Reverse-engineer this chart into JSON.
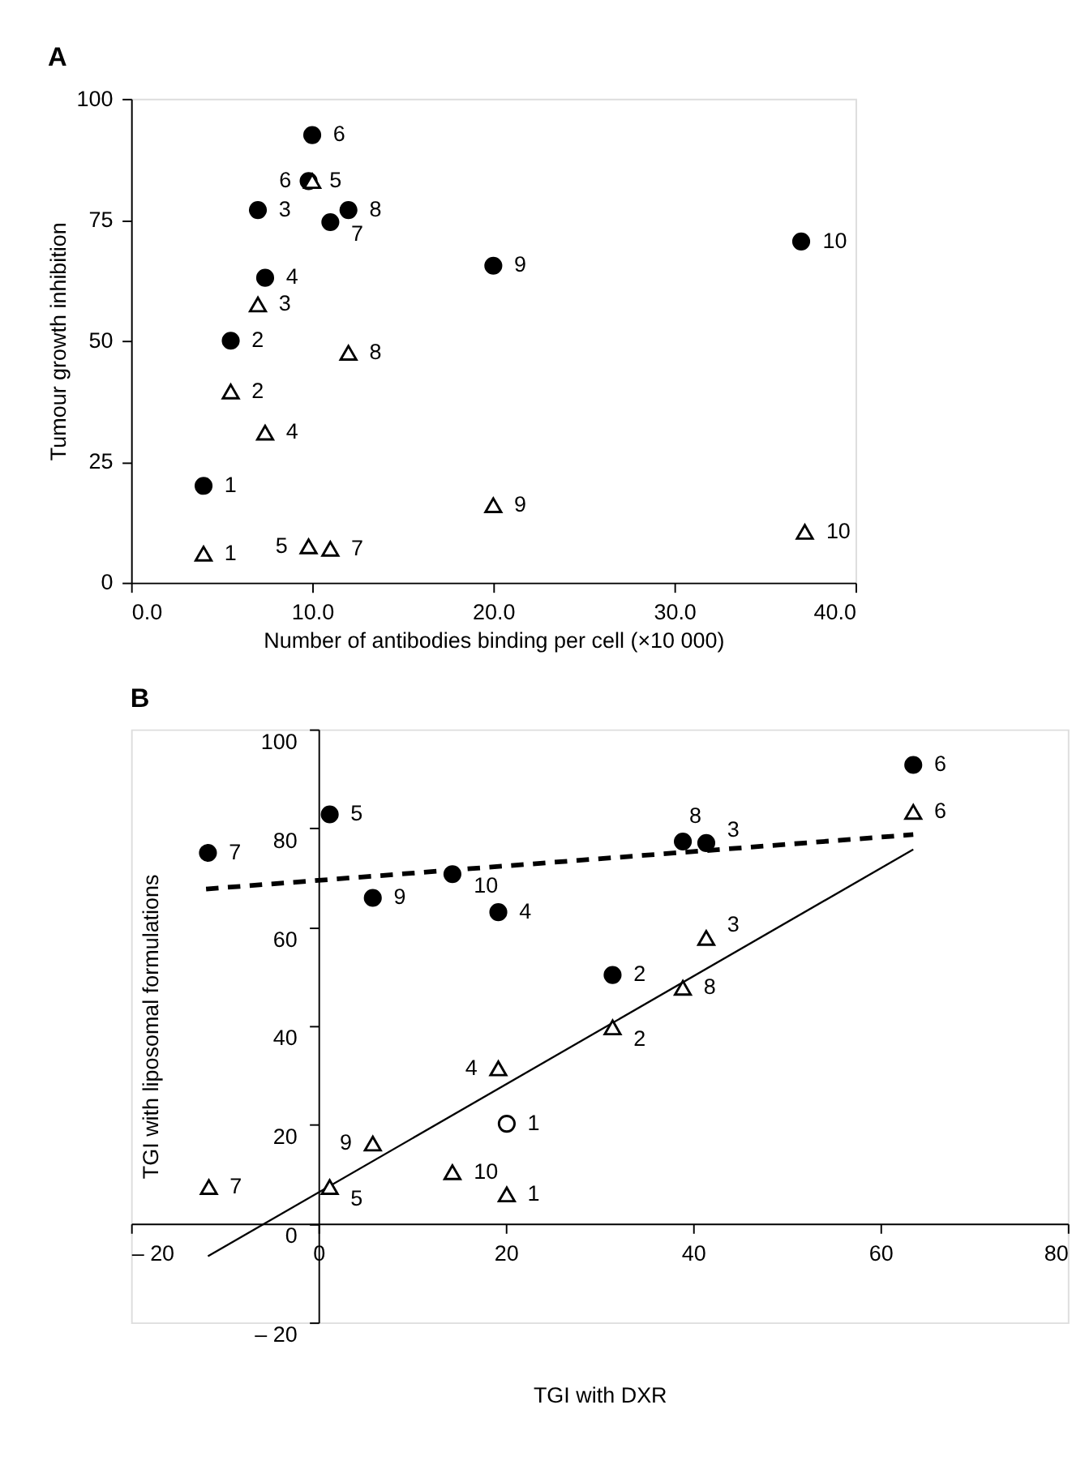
{
  "chart_data": [
    {
      "type": "scatter",
      "title": "A",
      "xlabel": "Number of antibodies binding per cell (×10 000)",
      "ylabel": "Tumour growth inhibition",
      "xlim": [
        0,
        40
      ],
      "xticks": [
        {
          "value": 0,
          "label": "0.0"
        },
        {
          "value": 10,
          "label": "10.0"
        },
        {
          "value": 20,
          "label": "20.0"
        },
        {
          "value": 30,
          "label": "30.0"
        },
        {
          "value": 40,
          "label": "40.0"
        }
      ],
      "ylim": [
        0,
        100
      ],
      "yticks": [
        0,
        25,
        50,
        75,
        100
      ],
      "grid": false,
      "series": [
        {
          "marker": "circle",
          "color": "#000000",
          "x": [
            4,
            5.5,
            7,
            7.4,
            9.8,
            10,
            11,
            12,
            20,
            37
          ],
          "values": [
            20,
            50,
            77,
            63,
            83,
            92.5,
            74.5,
            77,
            65.5,
            70.5
          ]
        },
        {
          "marker": "triangle",
          "color": "#ffffff",
          "x": [
            4,
            5.5,
            7,
            7.4,
            9.8,
            10,
            11,
            12,
            20,
            37.2
          ],
          "values": [
            6,
            39.5,
            57.5,
            31,
            7.5,
            83,
            7,
            47.5,
            16,
            10.5
          ]
        }
      ],
      "annotations": [
        {
          "text": "1",
          "x": 4,
          "y": 20
        },
        {
          "text": "2",
          "x": 5.5,
          "y": 50
        },
        {
          "text": "3",
          "x": 7,
          "y": 77
        },
        {
          "text": "4",
          "x": 7.4,
          "y": 63
        },
        {
          "text": "5",
          "x": 9.8,
          "y": 83
        },
        {
          "text": "6",
          "x": 10,
          "y": 92.5
        },
        {
          "text": "7",
          "x": 11,
          "y": 74.5
        },
        {
          "text": "8",
          "x": 12,
          "y": 77
        },
        {
          "text": "9",
          "x": 20,
          "y": 65.5
        },
        {
          "text": "10",
          "x": 37,
          "y": 70.5
        },
        {
          "text": "1",
          "x": 4,
          "y": 6
        },
        {
          "text": "2",
          "x": 5.5,
          "y": 39.5
        },
        {
          "text": "3",
          "x": 7,
          "y": 57.5
        },
        {
          "text": "4",
          "x": 7.4,
          "y": 31
        },
        {
          "text": "5",
          "x": 9.8,
          "y": 7.5
        },
        {
          "text": "6",
          "x": 10,
          "y": 83
        },
        {
          "text": "7",
          "x": 11,
          "y": 7
        },
        {
          "text": "8",
          "x": 12,
          "y": 47.5
        },
        {
          "text": "9",
          "x": 20,
          "y": 16
        },
        {
          "text": "10",
          "x": 37.2,
          "y": 10.5
        }
      ]
    },
    {
      "type": "scatter",
      "title": "B",
      "xlabel": "TGI with DXR",
      "ylabel": "TGI with liposomal formulations",
      "xlim": [
        -20,
        80
      ],
      "xticks": [
        {
          "value": -20,
          "label": "– 20"
        },
        0,
        20,
        40,
        60,
        80
      ],
      "ylim": [
        -20,
        100
      ],
      "yticks": [
        {
          "value": -20,
          "label": "– 20"
        },
        0,
        20,
        40,
        60,
        80,
        100
      ],
      "grid": false,
      "series": [
        {
          "type": "line",
          "line_style": "dashed",
          "color": "#000000",
          "x": [
            -12,
            63.5
          ],
          "values": [
            67.7,
            78.7
          ]
        },
        {
          "type": "line",
          "line_style": "solid",
          "color": "#000000",
          "x": [
            -11.8,
            63.5
          ],
          "values": [
            -6.6,
            75.7
          ]
        },
        {
          "marker": "circle",
          "color": "#000000",
          "x": [
            31.4,
            41.4,
            19.2,
            1.2,
            63.5,
            -11.8,
            38.9,
            5.8,
            14.3
          ],
          "values": [
            50.3,
            77,
            63,
            82.8,
            92.8,
            75,
            77.3,
            65.9,
            70.7
          ]
        },
        {
          "marker": "circle",
          "color": "#ffffff",
          "x": [
            20.1
          ],
          "values": [
            20.2
          ]
        },
        {
          "marker": "triangle",
          "color": "#ffffff",
          "x": [
            20.1,
            31.4,
            41.4,
            19.2,
            1.2,
            63.5,
            -11.7,
            38.9,
            5.8,
            14.3
          ],
          "values": [
            5.9,
            39.7,
            57.8,
            31.4,
            7.4,
            83.3,
            7.4,
            47.7,
            16.2,
            10.4
          ]
        }
      ],
      "annotations": [
        {
          "text": "1",
          "x": 20.1,
          "y": 20.2
        },
        {
          "text": "2",
          "x": 31.4,
          "y": 50.3
        },
        {
          "text": "3",
          "x": 41.4,
          "y": 77
        },
        {
          "text": "4",
          "x": 19.2,
          "y": 63
        },
        {
          "text": "5",
          "x": 1.2,
          "y": 82.8
        },
        {
          "text": "6",
          "x": 63.5,
          "y": 92.8
        },
        {
          "text": "7",
          "x": -11.8,
          "y": 75
        },
        {
          "text": "8",
          "x": 38.9,
          "y": 77.3
        },
        {
          "text": "9",
          "x": 5.8,
          "y": 65.9
        },
        {
          "text": "10",
          "x": 14.3,
          "y": 70.7
        },
        {
          "text": "1",
          "x": 20.1,
          "y": 5.9
        },
        {
          "text": "2",
          "x": 31.4,
          "y": 39.7
        },
        {
          "text": "3",
          "x": 41.4,
          "y": 57.8
        },
        {
          "text": "4",
          "x": 19.2,
          "y": 31.4
        },
        {
          "text": "5",
          "x": 1.2,
          "y": 7.4
        },
        {
          "text": "6",
          "x": 63.5,
          "y": 83.3
        },
        {
          "text": "7",
          "x": -11.7,
          "y": 7.4
        },
        {
          "text": "8",
          "x": 38.9,
          "y": 47.7
        },
        {
          "text": "9",
          "x": 5.8,
          "y": 16.2
        },
        {
          "text": "10",
          "x": 14.3,
          "y": 10.4
        }
      ]
    }
  ]
}
